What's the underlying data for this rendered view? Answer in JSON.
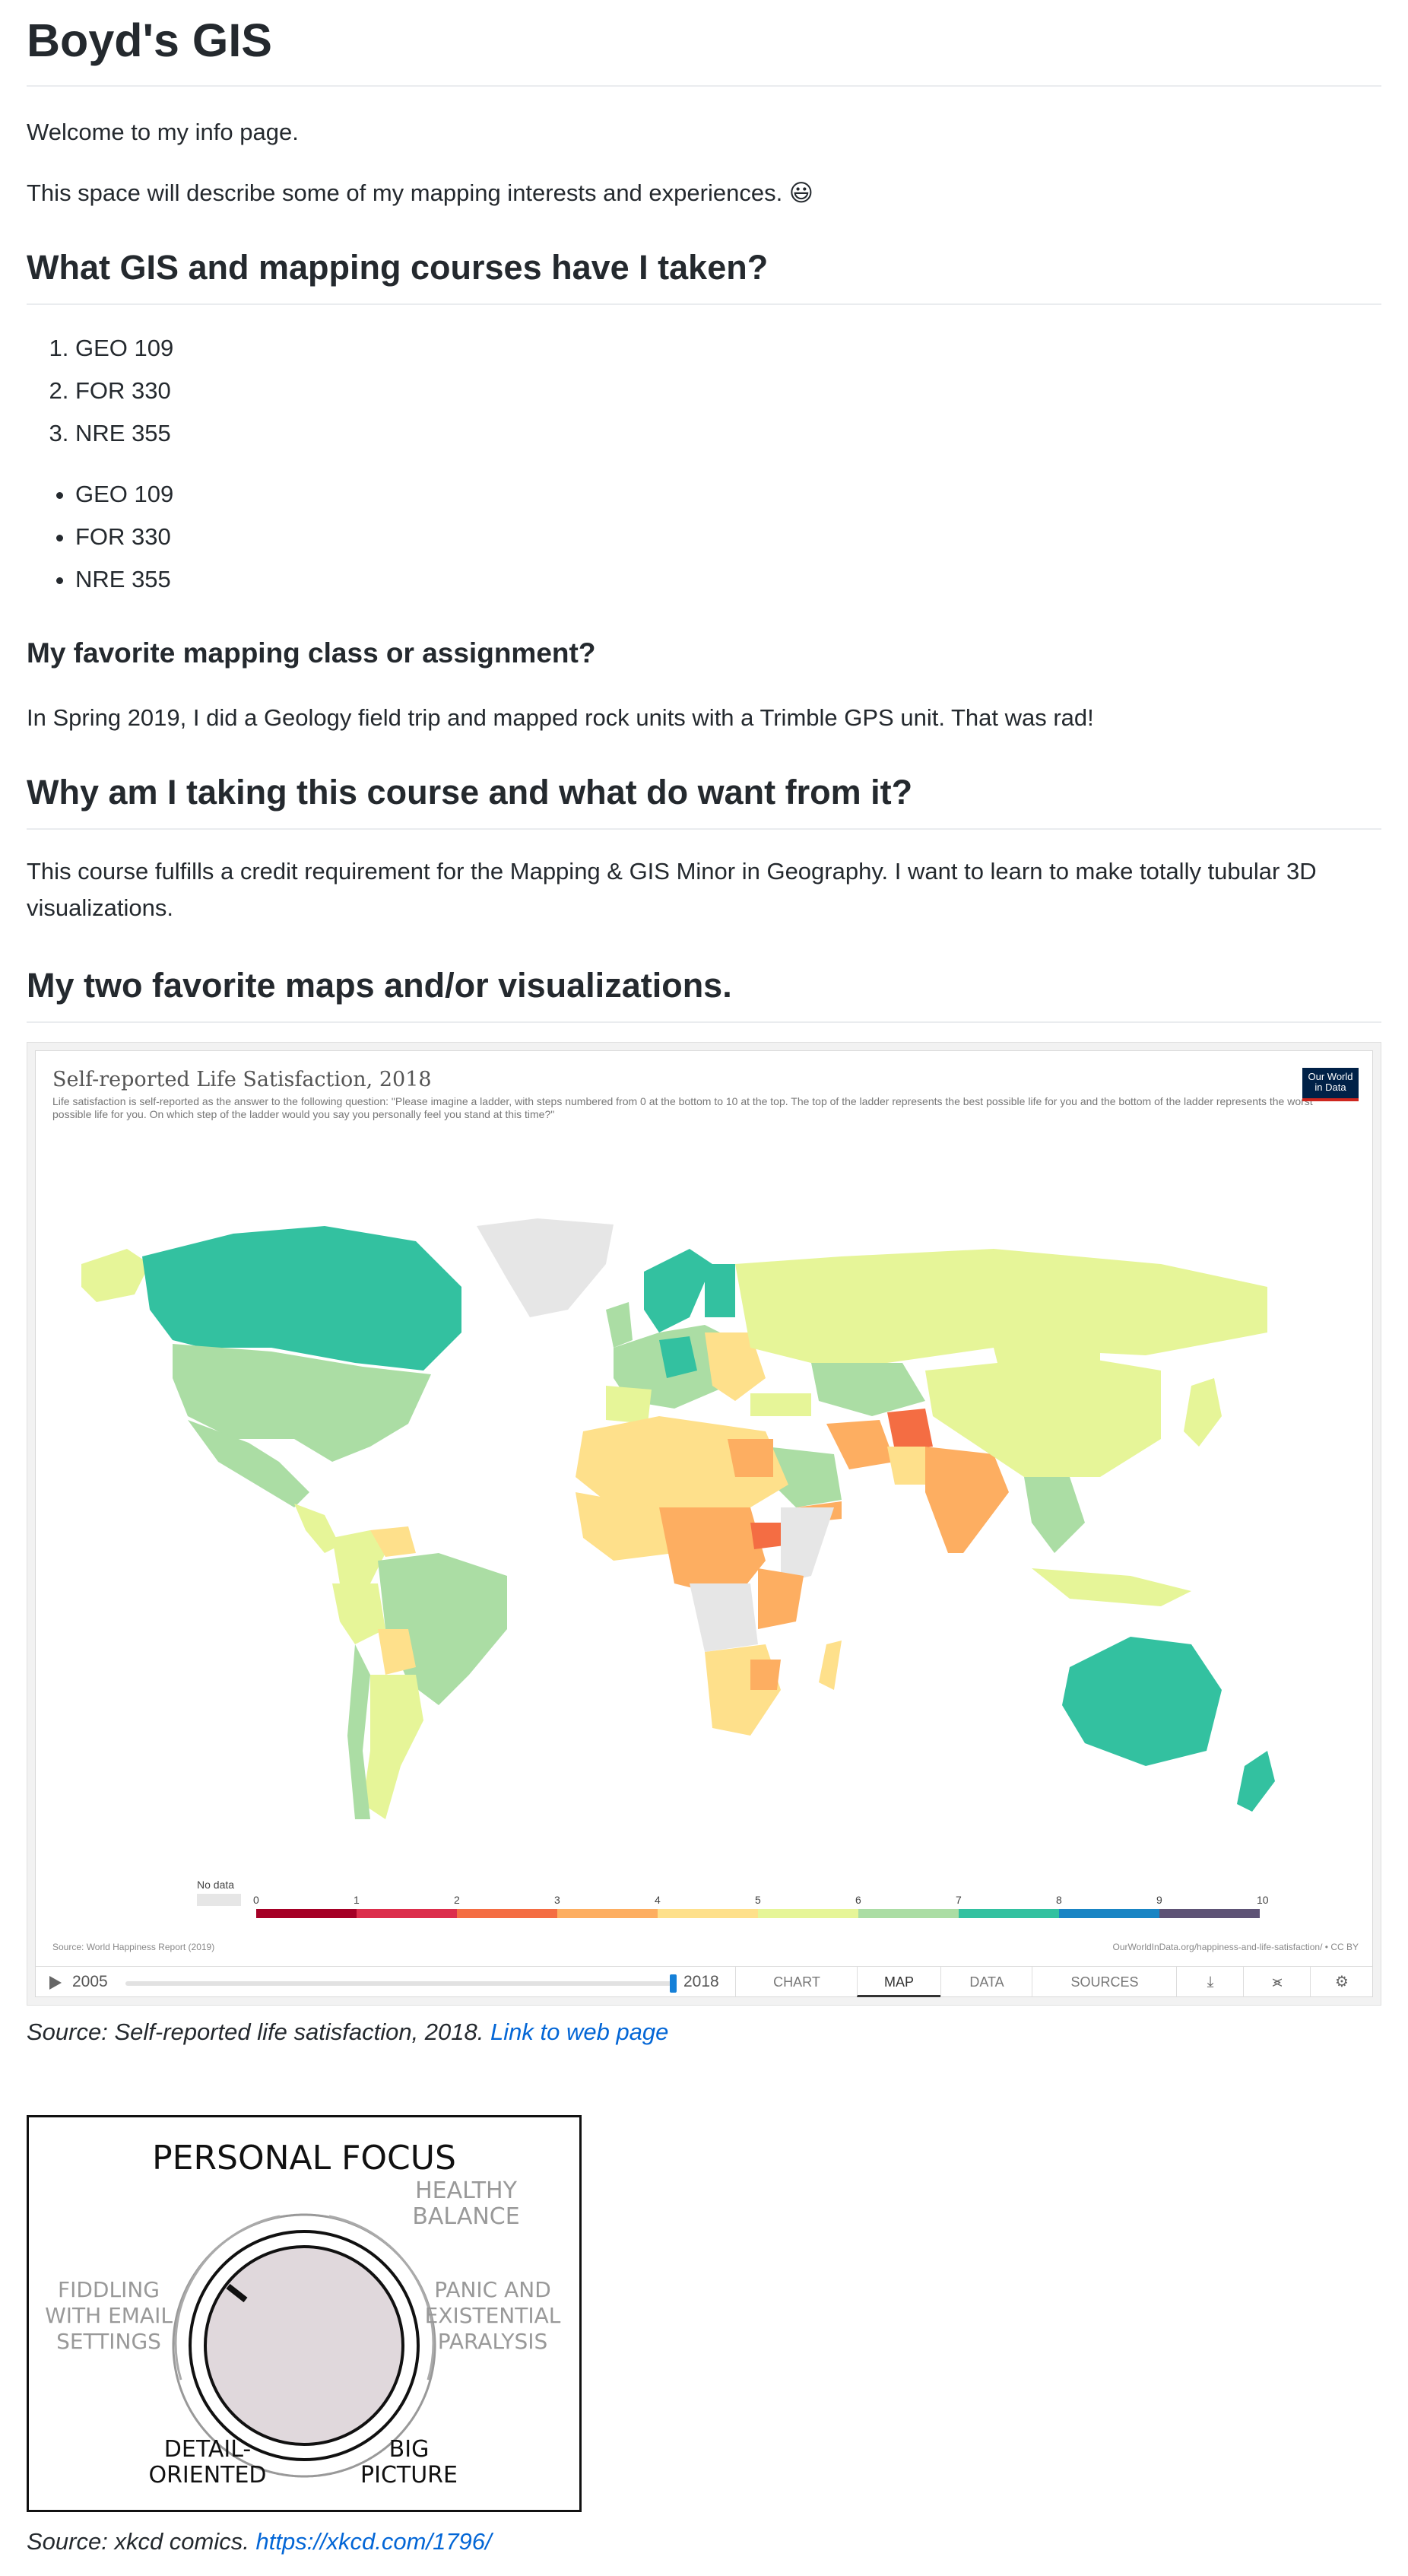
{
  "page_title": "Boyd's GIS",
  "intro": {
    "welcome": "Welcome to my info page.",
    "describe": "This space will describe some of my mapping interests and experiences. 😃"
  },
  "courses": {
    "heading": "What GIS and mapping courses have I taken?",
    "ordered": [
      "GEO 109",
      "FOR 330",
      "NRE 355"
    ],
    "unordered": [
      "GEO 109",
      "FOR 330",
      "NRE 355"
    ]
  },
  "favorite_class": {
    "heading": "My favorite mapping class or assignment?",
    "text": "In Spring 2019, I did a Geology field trip and mapped rock units with a Trimble GPS unit. That was rad!"
  },
  "why": {
    "heading": "Why am I taking this course and what do want from it?",
    "text": "This course fulfills a credit requirement for the Mapping & GIS Minor in Geography. I want to learn to make totally tubular 3D visualizations."
  },
  "favorites": {
    "heading": "My two favorite maps and/or visualizations."
  },
  "owid": {
    "title": "Self-reported Life Satisfaction, 2018",
    "subtitle": "Life satisfaction is self-reported as the answer to the following question: \"Please imagine a ladder, with steps numbered from 0 at the bottom to 10 at the top. The top of the ladder represents the best possible life for you and the bottom of the ladder represents the worst possible life for you. On which step of the ladder would you say you personally feel you stand at this time?\"",
    "logo_line1": "Our World",
    "logo_line2": "in Data",
    "legend_nodata": "No data",
    "legend_ticks": [
      "0",
      "1",
      "2",
      "3",
      "4",
      "5",
      "6",
      "7",
      "8",
      "9",
      "10"
    ],
    "legend_colors": [
      "#a50026",
      "#dc2e4c",
      "#f46d43",
      "#fdae61",
      "#fee08b",
      "#e6f598",
      "#abdda4",
      "#33c1a0",
      "#1a85c4",
      "#5e5376"
    ],
    "source_left": "Source: World Happiness Report (2019)",
    "source_right": "OurWorldInData.org/happiness-and-life-satisfaction/ • CC BY",
    "year_start": "2005",
    "year_end": "2018",
    "tabs": [
      "CHART",
      "MAP",
      "DATA",
      "SOURCES"
    ],
    "active_tab": "MAP",
    "tools": [
      "download-icon",
      "share-icon",
      "gear-icon"
    ]
  },
  "caption1": {
    "text": "Source: Self-reported life satisfaction, 2018.",
    "link": "Link to web page"
  },
  "xkcd": {
    "title": "PERSONAL FOCUS",
    "healthy": "HEALTHY BALANCE",
    "fiddling": "FIDDLING WITH EMAIL SETTINGS",
    "panic": "PANIC AND EXISTENTIAL PARALYSIS",
    "detail": "DETAIL-ORIENTED",
    "big": "BIG PICTURE"
  },
  "caption2": {
    "text": "Source: xkcd comics.",
    "link": "https://xkcd.com/1796/"
  }
}
